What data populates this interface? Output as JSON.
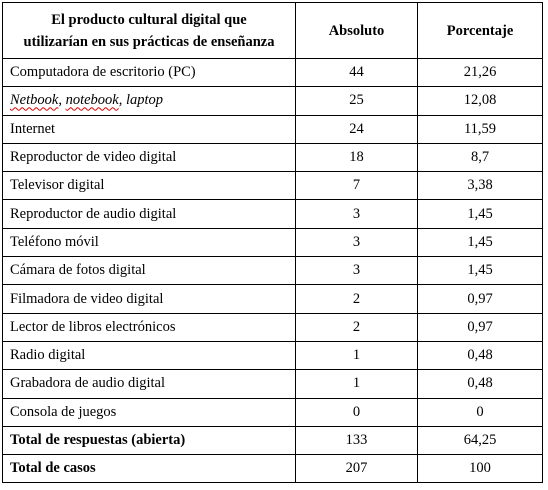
{
  "table": {
    "headers": {
      "product_line1": "El producto cultural digital que",
      "product_line2": "utilizarían en sus prácticas de enseñanza",
      "absolute": "Absoluto",
      "percentage": "Porcentaje"
    },
    "rows": [
      {
        "label": "Computadora de escritorio (PC)",
        "absolute": "44",
        "percentage": "21,26"
      },
      {
        "label_parts": {
          "p1": "Netbook",
          "sep1": ", ",
          "p2": "notebook",
          "sep2": ", ",
          "p3": "laptop"
        },
        "absolute": "25",
        "percentage": "12,08"
      },
      {
        "label": "Internet",
        "absolute": "24",
        "percentage": "11,59"
      },
      {
        "label": "Reproductor de video digital",
        "absolute": "18",
        "percentage": "8,7"
      },
      {
        "label": "Televisor digital",
        "absolute": "7",
        "percentage": "3,38"
      },
      {
        "label": "Reproductor de audio digital",
        "absolute": "3",
        "percentage": "1,45"
      },
      {
        "label": "Teléfono móvil",
        "absolute": "3",
        "percentage": "1,45"
      },
      {
        "label": "Cámara de fotos digital",
        "absolute": "3",
        "percentage": "1,45"
      },
      {
        "label": "Filmadora de video digital",
        "absolute": "2",
        "percentage": "0,97"
      },
      {
        "label": "Lector de libros electrónicos",
        "absolute": "2",
        "percentage": "0,97"
      },
      {
        "label": "Radio digital",
        "absolute": "1",
        "percentage": "0,48"
      },
      {
        "label": "Grabadora de audio digital",
        "absolute": "1",
        "percentage": "0,48"
      },
      {
        "label": "Consola de juegos",
        "absolute": "0",
        "percentage": "0"
      }
    ],
    "totals": [
      {
        "label": "Total de respuestas (abierta)",
        "absolute": "133",
        "percentage": "64,25"
      },
      {
        "label": "Total de casos",
        "absolute": "207",
        "percentage": "100"
      }
    ]
  }
}
